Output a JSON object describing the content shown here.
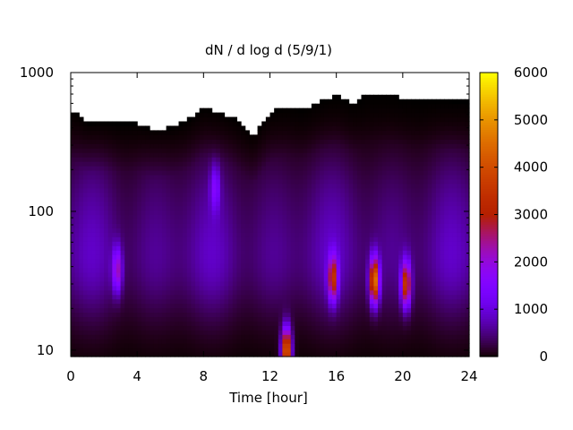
{
  "chart_data": {
    "type": "heatmap",
    "title": "dN / d log d (5/9/1)",
    "xlabel": "Time [hour]",
    "ylabel": "",
    "x_range": [
      0,
      24
    ],
    "x_ticks": [
      0,
      4,
      8,
      12,
      16,
      20,
      24
    ],
    "y_scale": "log",
    "y_range": [
      9,
      1000
    ],
    "y_ticks": [
      10,
      100,
      1000
    ],
    "colorbar": {
      "range": [
        0,
        6000
      ],
      "ticks": [
        0,
        1000,
        2000,
        3000,
        4000,
        5000,
        6000
      ],
      "colormap": "gnuplot (black-purple-red-orange-yellow)"
    },
    "grid": false,
    "background_region": {
      "note": "white (no data) above the upper size limit, which varies between ~330 and ~800",
      "upper_limit_samples": [
        {
          "x": 0,
          "y": 550
        },
        {
          "x": 1,
          "y": 430
        },
        {
          "x": 2,
          "y": 440
        },
        {
          "x": 3,
          "y": 430
        },
        {
          "x": 4,
          "y": 430
        },
        {
          "x": 5,
          "y": 390
        },
        {
          "x": 6,
          "y": 400
        },
        {
          "x": 7,
          "y": 450
        },
        {
          "x": 8,
          "y": 560
        },
        {
          "x": 9,
          "y": 520
        },
        {
          "x": 10,
          "y": 460
        },
        {
          "x": 11,
          "y": 350
        },
        {
          "x": 12,
          "y": 520
        },
        {
          "x": 13,
          "y": 580
        },
        {
          "x": 14,
          "y": 540
        },
        {
          "x": 15,
          "y": 620
        },
        {
          "x": 16,
          "y": 680
        },
        {
          "x": 17,
          "y": 600
        },
        {
          "x": 18,
          "y": 720
        },
        {
          "x": 19,
          "y": 700
        },
        {
          "x": 20,
          "y": 660
        },
        {
          "x": 21,
          "y": 640
        },
        {
          "x": 22,
          "y": 640
        },
        {
          "x": 23,
          "y": 620
        },
        {
          "x": 24,
          "y": 620
        }
      ]
    },
    "features": [
      {
        "x": 2.8,
        "y": 38,
        "value": 2500
      },
      {
        "x": 8.7,
        "y": 150,
        "value": 1700
      },
      {
        "x": 13.0,
        "y": 10,
        "value": 5200
      },
      {
        "x": 15.8,
        "y": 33,
        "value": 3500
      },
      {
        "x": 18.3,
        "y": 32,
        "value": 5000
      },
      {
        "x": 20.2,
        "y": 30,
        "value": 3900
      }
    ]
  }
}
